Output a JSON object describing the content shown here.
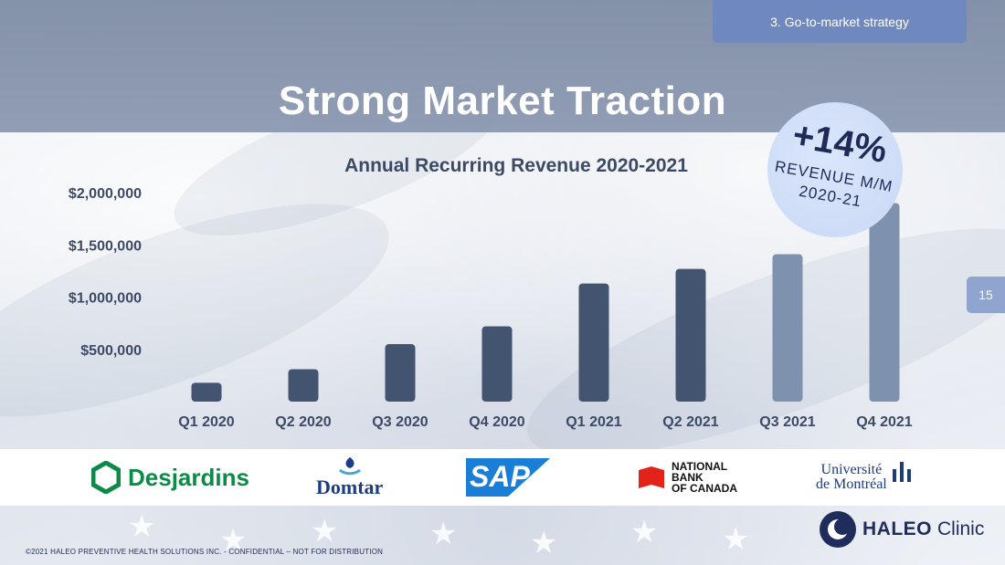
{
  "section_tag": "3. Go-to-market strategy",
  "page_title": "Strong Market Traction",
  "page_number": "15",
  "callout": {
    "big": "+14%",
    "line1": "REVENUE M/M",
    "line2": "2020-21"
  },
  "chart_data": {
    "type": "bar",
    "title": "Annual Recurring Revenue 2020-2021",
    "xlabel": "",
    "ylabel": "",
    "categories": [
      "Q1 2020",
      "Q2 2020",
      "Q3 2020",
      "Q4 2020",
      "Q1 2021",
      "Q2 2021",
      "Q3 2021",
      "Q4 2021"
    ],
    "values": [
      180000,
      310000,
      550000,
      720000,
      1130000,
      1270000,
      1410000,
      1900000
    ],
    "ylim": [
      0,
      2000000
    ],
    "yticks": [
      500000,
      1000000,
      1500000,
      2000000
    ],
    "ytick_labels": [
      "$500,000",
      "$1,000,000",
      "$1,500,000",
      "$2,000,000"
    ],
    "grid": false,
    "colors": [
      "#435470",
      "#435470",
      "#435470",
      "#435470",
      "#435470",
      "#435470",
      "#7e92b0",
      "#7e92b0"
    ]
  },
  "logos": [
    {
      "name": "Desjardins",
      "icon": "desjardins-hexagon-icon",
      "color": "#0c8a48"
    },
    {
      "name": "Domtar",
      "icon": "domtar-emblem-icon",
      "color": "#1c3c88"
    },
    {
      "name": "SAP",
      "icon": "sap-logo-icon",
      "color": "#1a7ed6"
    },
    {
      "name_lines": [
        "NATIONAL",
        "BANK",
        "OF CANADA"
      ],
      "icon": "national-bank-flag-icon",
      "color": "#e2231a"
    },
    {
      "name_lines": [
        "Université",
        "de Montréal"
      ],
      "icon": "udem-emblem-icon",
      "color": "#1f3c7a"
    }
  ],
  "brand": {
    "bold": "HALEO",
    "light": "Clinic",
    "icon": "haleo-moon-icon",
    "color": "#1e2d5c"
  },
  "footer": "©2021 HALEO PREVENTIVE HEALTH SOLUTIONS INC. -  CONFIDENTIAL – NOT FOR DISTRIBUTION"
}
